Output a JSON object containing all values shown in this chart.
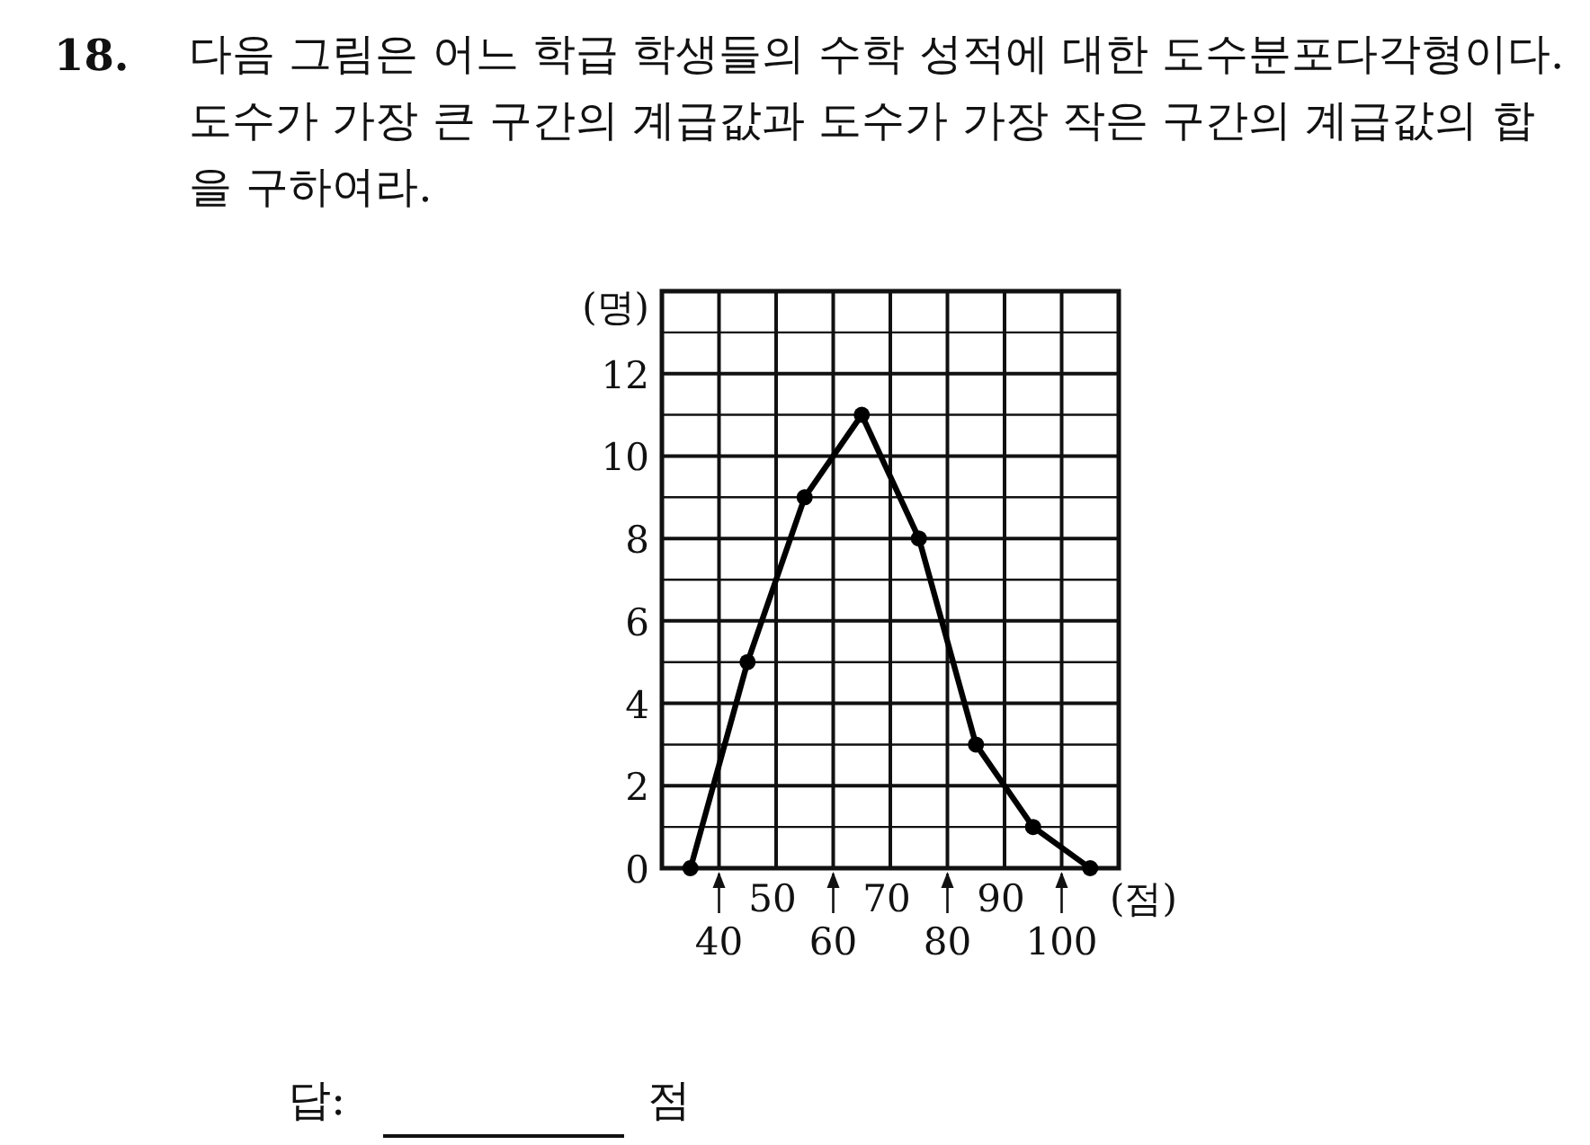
{
  "chart_data": {
    "type": "line",
    "title": "다음 그림은 어느 학급 학생들의 수학 성적에 대한 도수분포다각형이다. 도수가 가장 큰 구간의 계급값과 도수가 가장 작은 구간의 계급값의 합을 구하여라.",
    "annotations": [
      "18.",
      "답:",
      "점",
      "50",
      "70",
      "90"
    ],
    "xlabel": "(점)",
    "ylabel": "(명)",
    "x": [
      35,
      45,
      55,
      65,
      75,
      85,
      95,
      105
    ],
    "series": [
      {
        "color": "#000000",
        "values": [
          0,
          5,
          9,
          11,
          8,
          3,
          1,
          0
        ]
      }
    ],
    "xlim": [
      30,
      110
    ],
    "xticks": [
      {
        "value": 30,
        "label": null
      },
      40,
      {
        "value": 50,
        "label": null
      },
      60,
      {
        "value": 70,
        "label": null
      },
      80,
      {
        "value": 90,
        "label": null
      },
      100,
      {
        "value": 110,
        "label": null
      }
    ],
    "ylim": [
      0,
      14
    ],
    "yticks": [
      0,
      {
        "value": 1,
        "label": null
      },
      2,
      {
        "value": 3,
        "label": null
      },
      4,
      {
        "value": 5,
        "label": null
      },
      6,
      {
        "value": 7,
        "label": null
      },
      8,
      {
        "value": 9,
        "label": null
      },
      10,
      {
        "value": 11,
        "label": null
      },
      12,
      {
        "value": 13,
        "label": null
      },
      {
        "value": 14,
        "label": null
      }
    ],
    "grid": true,
    "marker": "circle",
    "line_style": "solid"
  }
}
